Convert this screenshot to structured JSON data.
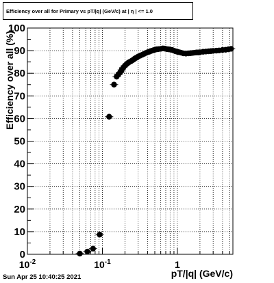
{
  "chart_data": {
    "type": "scatter",
    "title": "Efficiency over all for Primary vs pT/|q| (GeV/c) at | η | <= 1.0",
    "xlabel": "pT/|q| (GeV/c)",
    "ylabel": "Efficiency over all (%)",
    "x_scale": "log",
    "xlim": [
      0.01,
      5.5
    ],
    "ylim": [
      0,
      100
    ],
    "x_ticks": [
      {
        "value": 0.01,
        "label": "10",
        "exp": "-2"
      },
      {
        "value": 0.1,
        "label": "10",
        "exp": "-1"
      },
      {
        "value": 1,
        "label": "1",
        "exp": ""
      }
    ],
    "y_ticks": [
      0,
      10,
      20,
      30,
      40,
      50,
      60,
      70,
      80,
      90,
      100
    ],
    "grid": true,
    "marker_color": "#000000",
    "series": [
      {
        "points": [
          [
            0.05,
            0.3
          ],
          [
            0.063,
            1.2
          ],
          [
            0.075,
            2.5
          ],
          [
            0.092,
            8.7
          ],
          [
            0.123,
            60.8
          ],
          [
            0.143,
            75.0
          ],
          [
            0.155,
            78.5
          ],
          [
            0.163,
            79.5
          ],
          [
            0.172,
            80.3
          ],
          [
            0.181,
            81.5
          ],
          [
            0.19,
            82.5
          ],
          [
            0.2,
            83.4
          ],
          [
            0.21,
            84.0
          ],
          [
            0.22,
            84.6
          ],
          [
            0.23,
            85.0
          ],
          [
            0.24,
            85.3
          ],
          [
            0.25,
            85.7
          ],
          [
            0.26,
            86.0
          ],
          [
            0.27,
            86.5
          ],
          [
            0.28,
            86.8
          ],
          [
            0.29,
            87.0
          ],
          [
            0.3,
            87.4
          ],
          [
            0.32,
            87.8
          ],
          [
            0.34,
            88.2
          ],
          [
            0.36,
            88.6
          ],
          [
            0.38,
            89.0
          ],
          [
            0.4,
            89.3
          ],
          [
            0.42,
            89.5
          ],
          [
            0.44,
            89.8
          ],
          [
            0.46,
            90.0
          ],
          [
            0.48,
            90.2
          ],
          [
            0.5,
            90.4
          ],
          [
            0.53,
            90.6
          ],
          [
            0.56,
            90.7
          ],
          [
            0.6,
            90.8
          ],
          [
            0.64,
            91.0
          ],
          [
            0.68,
            90.9
          ],
          [
            0.72,
            90.7
          ],
          [
            0.76,
            90.6
          ],
          [
            0.8,
            90.5
          ],
          [
            0.85,
            90.3
          ],
          [
            0.9,
            90.0
          ],
          [
            0.95,
            89.7
          ],
          [
            1.0,
            89.5
          ],
          [
            1.06,
            89.3
          ],
          [
            1.12,
            89.1
          ],
          [
            1.2,
            88.8
          ],
          [
            1.3,
            88.7
          ],
          [
            1.4,
            88.8
          ],
          [
            1.5,
            88.9
          ],
          [
            1.6,
            89.0
          ],
          [
            1.7,
            89.1
          ],
          [
            1.8,
            89.2
          ],
          [
            1.9,
            89.2
          ],
          [
            2.0,
            89.3
          ],
          [
            2.2,
            89.5
          ],
          [
            2.4,
            89.6
          ],
          [
            2.6,
            89.7
          ],
          [
            2.8,
            89.8
          ],
          [
            3.0,
            89.9
          ],
          [
            3.3,
            90.0
          ],
          [
            3.6,
            90.1
          ],
          [
            4.0,
            90.3
          ],
          [
            4.4,
            90.4
          ],
          [
            4.8,
            90.6
          ],
          [
            5.2,
            90.8
          ]
        ]
      }
    ]
  },
  "footer": {
    "timestamp": "Sun Apr 25 10:40:25 2021"
  }
}
